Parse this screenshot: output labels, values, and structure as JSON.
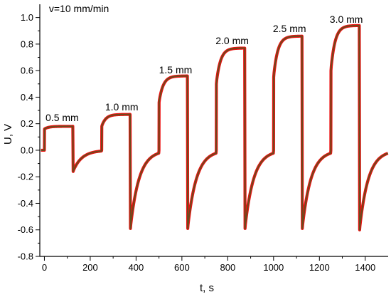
{
  "chart_data": {
    "type": "line",
    "title": "",
    "xlabel": "t, s",
    "ylabel": "U, V",
    "xlim": [
      -20,
      1500
    ],
    "ylim": [
      -0.8,
      1.1
    ],
    "xticks": [
      0,
      200,
      400,
      600,
      800,
      1000,
      1200,
      1400
    ],
    "yticks": [
      -0.8,
      -0.6,
      -0.4,
      -0.2,
      0.0,
      0.2,
      0.4,
      0.6,
      0.8,
      1.0
    ],
    "ytick_labels": [
      "-0.8",
      "-0.6",
      "-0.4",
      "-0.2",
      "0.0",
      "0.2",
      "0.4",
      "0.6",
      "0.8",
      "1.0"
    ],
    "grid": false,
    "legend": "none",
    "annotations": [
      {
        "text": "v=10 mm/min",
        "x": 20,
        "y": 1.04
      },
      {
        "text": "0.5 mm",
        "x": 5,
        "y": 0.22
      },
      {
        "text": "1.0 mm",
        "x": 265,
        "y": 0.3
      },
      {
        "text": "1.5 mm",
        "x": 500,
        "y": 0.58
      },
      {
        "text": "2.0 mm",
        "x": 747,
        "y": 0.8
      },
      {
        "text": "2.5 mm",
        "x": 997,
        "y": 0.89
      },
      {
        "text": "3.0 mm",
        "x": 1245,
        "y": 0.96
      }
    ],
    "colors": {
      "curve_outer": "#ee1111",
      "curve_inner": "#6b4a1c"
    },
    "series": [
      {
        "pulses": [
          {
            "rise_t": 0,
            "fall_t": 125,
            "peak": 0.18,
            "start": 0.16,
            "dip": -0.16
          },
          {
            "rise_t": 250,
            "fall_t": 375,
            "peak": 0.27,
            "start": 0.18,
            "dip": -0.59
          },
          {
            "rise_t": 500,
            "fall_t": 625,
            "peak": 0.56,
            "start": 0.36,
            "dip": -0.59
          },
          {
            "rise_t": 750,
            "fall_t": 875,
            "peak": 0.77,
            "start": 0.5,
            "dip": -0.59
          },
          {
            "rise_t": 1000,
            "fall_t": 1125,
            "peak": 0.86,
            "start": 0.55,
            "dip": -0.59
          },
          {
            "rise_t": 1250,
            "fall_t": 1375,
            "peak": 0.94,
            "start": 0.6,
            "dip": -0.6
          }
        ]
      }
    ]
  }
}
